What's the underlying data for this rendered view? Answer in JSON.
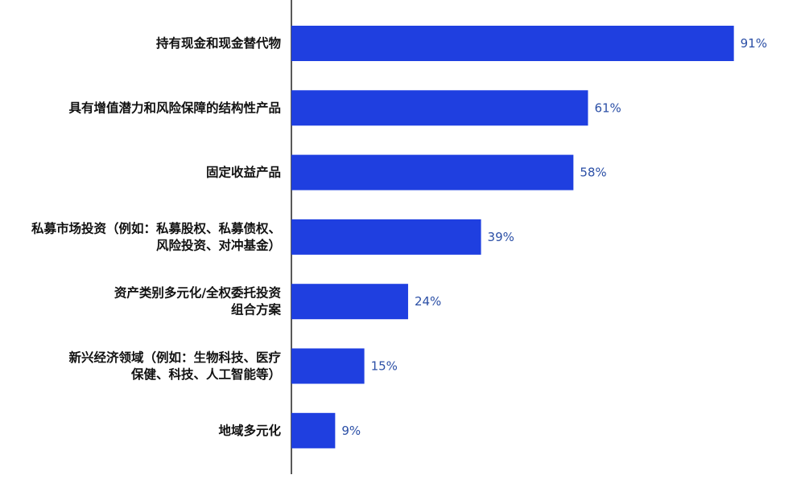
{
  "chart_data": {
    "type": "bar",
    "orientation": "horizontal",
    "categories": [
      [
        "持有现金和现金替代物"
      ],
      [
        "具有增值潜力和风险保障的结构性产品"
      ],
      [
        "固定收益产品"
      ],
      [
        "私募市场投资（例如：私募股权、私募债权、",
        "风险投资、对冲基金）"
      ],
      [
        "资产类别多元化/全权委托投资",
        "组合方案"
      ],
      [
        "新兴经济领域（例如：生物科技、医疗",
        "保健、科技、人工智能等）"
      ],
      [
        "地域多元化"
      ]
    ],
    "values": [
      91,
      61,
      58,
      39,
      24,
      15,
      9
    ],
    "value_labels": [
      "91%",
      "61%",
      "58%",
      "39%",
      "24%",
      "15%",
      "9%"
    ],
    "xlim": [
      0,
      100
    ],
    "grid": false,
    "legend": false,
    "colors": {
      "bar": "#1f3fe0",
      "value_label": "#2b4fa6",
      "axis": "#222222"
    }
  }
}
